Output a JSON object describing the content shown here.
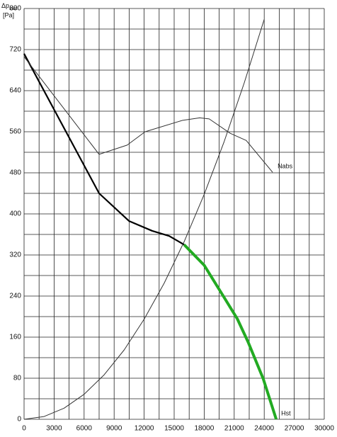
{
  "chart_data": {
    "type": "line",
    "y_label": "Δp",
    "y_label_sub": "stat",
    "y_unit": "[Pa]",
    "xlim": [
      0,
      30000
    ],
    "ylim": [
      0,
      800
    ],
    "xticks": [
      0,
      3000,
      6000,
      9000,
      12000,
      15000,
      18000,
      21000,
      24000,
      27000,
      30000
    ],
    "yticks": [
      0,
      80,
      160,
      240,
      320,
      400,
      480,
      560,
      640,
      720,
      800
    ],
    "xgrid": [
      0,
      1500,
      3000,
      4500,
      6000,
      7500,
      9000,
      10500,
      12000,
      13500,
      15000,
      16500,
      18000,
      19500,
      21000,
      22500,
      24000,
      25500,
      27000,
      28500,
      30000
    ],
    "ygrid": [
      0,
      40,
      80,
      120,
      160,
      200,
      240,
      280,
      320,
      360,
      400,
      440,
      480,
      520,
      560,
      600,
      640,
      680,
      720,
      760,
      800
    ],
    "series": [
      {
        "color": "#000000",
        "width": 2.2,
        "x": [
          0,
          7500,
          10500,
          12800,
          14500,
          16000
        ],
        "values": [
          712,
          440,
          386,
          367,
          357,
          340
        ]
      },
      {
        "name": "Hst",
        "color": "#22aa22",
        "width": 4,
        "x": [
          16000,
          18000,
          19750,
          21300,
          22400,
          23900,
          25200
        ],
        "values": [
          340,
          300,
          245,
          196,
          150,
          79,
          0
        ]
      },
      {
        "name": "Nabs",
        "color": "#333333",
        "width": 1,
        "x": [
          0,
          7500,
          10300,
          12100,
          15800,
          17550,
          18500,
          20600,
          22200,
          24840
        ],
        "values": [
          706,
          516,
          534,
          560,
          582,
          587,
          585,
          557,
          543,
          481
        ]
      },
      {
        "color": "#333333",
        "width": 1,
        "x": [
          0,
          2000,
          4000,
          6000,
          8000,
          10000,
          12000,
          14000,
          16000,
          18000,
          20000,
          22000,
          24000
        ],
        "values": [
          0,
          5.4,
          21.6,
          48.7,
          86.6,
          135,
          195,
          265,
          346,
          438,
          541,
          655,
          779
        ]
      }
    ]
  }
}
